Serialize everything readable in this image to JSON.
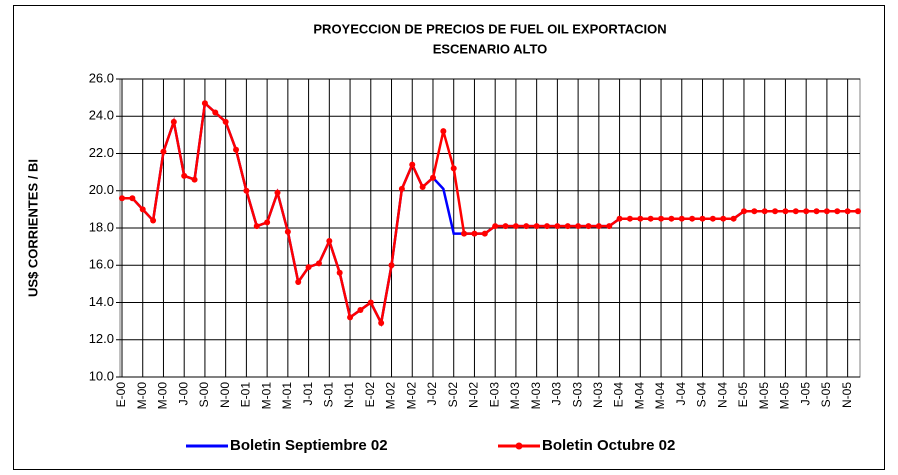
{
  "chart_data": {
    "type": "line",
    "title": "PROYECCION DE PRECIOS DE FUEL OIL EXPORTACION",
    "subtitle": "ESCENARIO ALTO",
    "y_label": "US$ CORRIENTES / BI",
    "categories": [
      "E-00",
      null,
      "M-00",
      null,
      "M-00",
      null,
      "J-00",
      null,
      "S-00",
      null,
      "N-00",
      null,
      "E-01",
      null,
      "M-01",
      null,
      "M-01",
      null,
      "J-01",
      null,
      "S-01",
      null,
      "N-01",
      null,
      "E-02",
      null,
      "M-02",
      null,
      "M-02",
      null,
      "J-02",
      null,
      "S-02",
      null,
      "N-02",
      null,
      "E-03",
      null,
      "M-03",
      null,
      "M-03",
      null,
      "J-03",
      null,
      "S-03",
      null,
      "N-03",
      null,
      "E-04",
      null,
      "M-04",
      null,
      "M-04",
      null,
      "J-04",
      null,
      "S-04",
      null,
      "N-04",
      null,
      "E-05",
      null,
      "M-05",
      null,
      "M-05",
      null,
      "J-05",
      null,
      "S-05",
      null,
      "N-05",
      null
    ],
    "series": [
      {
        "name": "Boletin Septiembre 02",
        "color": "#0000ff",
        "markers": false,
        "values": [
          19.6,
          19.6,
          19.0,
          18.4,
          22.1,
          23.7,
          20.8,
          20.6,
          24.7,
          24.2,
          23.7,
          22.2,
          20.0,
          18.1,
          18.3,
          19.9,
          17.8,
          15.1,
          15.9,
          16.1,
          17.3,
          15.6,
          13.2,
          13.6,
          14.0,
          12.9,
          16.0,
          20.1,
          21.4,
          20.2,
          20.7,
          20.1,
          17.7,
          17.7,
          17.7,
          17.7,
          18.1,
          18.1,
          18.1,
          18.1,
          18.1,
          18.1,
          18.1,
          18.1,
          18.1,
          18.1,
          18.1,
          18.1,
          18.5,
          18.5,
          18.5,
          18.5,
          18.5,
          18.5,
          18.5,
          18.5,
          18.5,
          18.5,
          18.5,
          18.5,
          18.9,
          18.9,
          18.9,
          18.9,
          18.9,
          18.9,
          18.9,
          18.9,
          18.9,
          18.9,
          18.9,
          18.9
        ]
      },
      {
        "name": "Boletin Octubre 02",
        "color": "#ff0000",
        "markers": true,
        "values": [
          19.6,
          19.6,
          19.0,
          18.4,
          22.1,
          23.7,
          20.8,
          20.6,
          24.7,
          24.2,
          23.7,
          22.2,
          20.0,
          18.1,
          18.3,
          19.9,
          17.8,
          15.1,
          15.9,
          16.1,
          17.3,
          15.6,
          13.2,
          13.6,
          14.0,
          12.9,
          16.0,
          20.1,
          21.4,
          20.2,
          20.7,
          23.2,
          21.2,
          17.7,
          17.7,
          17.7,
          18.1,
          18.1,
          18.1,
          18.1,
          18.1,
          18.1,
          18.1,
          18.1,
          18.1,
          18.1,
          18.1,
          18.1,
          18.5,
          18.5,
          18.5,
          18.5,
          18.5,
          18.5,
          18.5,
          18.5,
          18.5,
          18.5,
          18.5,
          18.5,
          18.9,
          18.9,
          18.9,
          18.9,
          18.9,
          18.9,
          18.9,
          18.9,
          18.9,
          18.9,
          18.9,
          18.9
        ]
      }
    ],
    "ylim": [
      10,
      26
    ],
    "yticks": [
      {
        "value": 10,
        "label": "10.0"
      },
      {
        "value": 12,
        "label": "12.0"
      },
      {
        "value": 14,
        "label": "14.0"
      },
      {
        "value": 16,
        "label": "16.0"
      },
      {
        "value": 18,
        "label": "18.0"
      },
      {
        "value": 20,
        "label": "20.0"
      },
      {
        "value": 22,
        "label": "22.0"
      },
      {
        "value": 24,
        "label": "24.0"
      },
      {
        "value": 26,
        "label": "26.0"
      }
    ],
    "grid": true,
    "legend": "bottom"
  }
}
